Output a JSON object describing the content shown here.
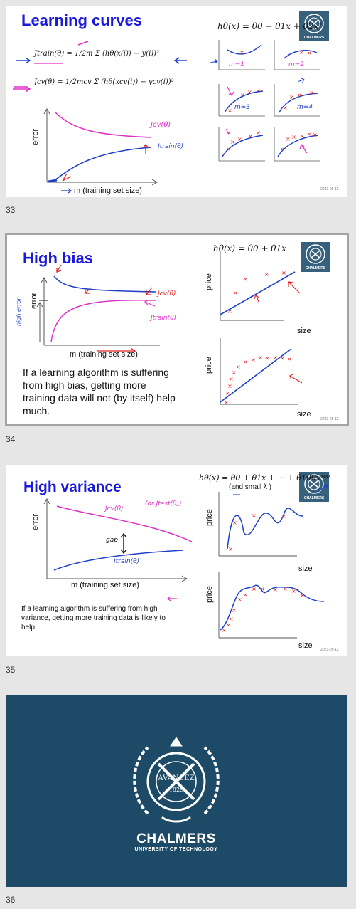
{
  "slides": [
    {
      "number": "33",
      "title": "Learning curves",
      "hypothesis": "hθ(x) = θ0 + θ1x + θ2x²",
      "j_train": "Jtrain(θ) = 1/2m Σ (hθ(x(i)) − y(i))²",
      "j_cv": "Jcv(θ) = 1/2mcv Σ (hθ(xcv(i)) − ycv(i))²",
      "y_axis": "error",
      "x_axis": "m (training set size)",
      "hand_jcv": "Jcv(θ)",
      "hand_jtrain": "Jtrain(θ)",
      "panel_labels": [
        "m=1",
        "m=2",
        "m=3",
        "m=4"
      ],
      "date": "2023-05-12",
      "seal_text": "CHALMERS"
    },
    {
      "number": "34",
      "title": "High bias",
      "hypothesis": "hθ(x) = θ0 + θ1x",
      "y_axis": "error",
      "x_axis": "m (training set size)",
      "hand_jcv": "Jcv(θ)",
      "hand_jtrain": "Jtrain(θ)",
      "hand_side": "high error",
      "plot_y": "price",
      "plot_x": "size",
      "body": "If a learning algorithm is suffering from high bias, getting more training data will not (by itself) help much.",
      "date": "2023-05-12",
      "seal_text": "CHALMERS"
    },
    {
      "number": "35",
      "title": "High variance",
      "hypothesis": "hθ(x) = θ0 + θ1x + ··· + θ100x¹⁰⁰",
      "hypothesis_note": "(and small λ )",
      "y_axis": "error",
      "x_axis": "m (training set size)",
      "hand_jcv": "Jcv(θ)",
      "hand_jcv_alt": "(or Jtest(θ))",
      "hand_jtrain": "Jtrain(θ)",
      "hand_gap": "gap",
      "plot_y": "price",
      "plot_x": "size",
      "body": "If a learning algorithm is suffering from high variance, getting more training data is likely to help.",
      "date": "2023-05-12",
      "seal_text": "CHALMERS"
    },
    {
      "number": "36",
      "brand": "CHALMERS",
      "subtitle": "UNIVERSITY OF TECHNOLOGY",
      "seal_motto": "AVANCEZ",
      "seal_year": "1829"
    }
  ],
  "colors": {
    "title": "#1a1adb",
    "background": "#e6e6e6",
    "chalmers_blue": "#1d4a66",
    "pink": "#e02fc8",
    "blue": "#1f3fc8",
    "red": "#e02020"
  }
}
